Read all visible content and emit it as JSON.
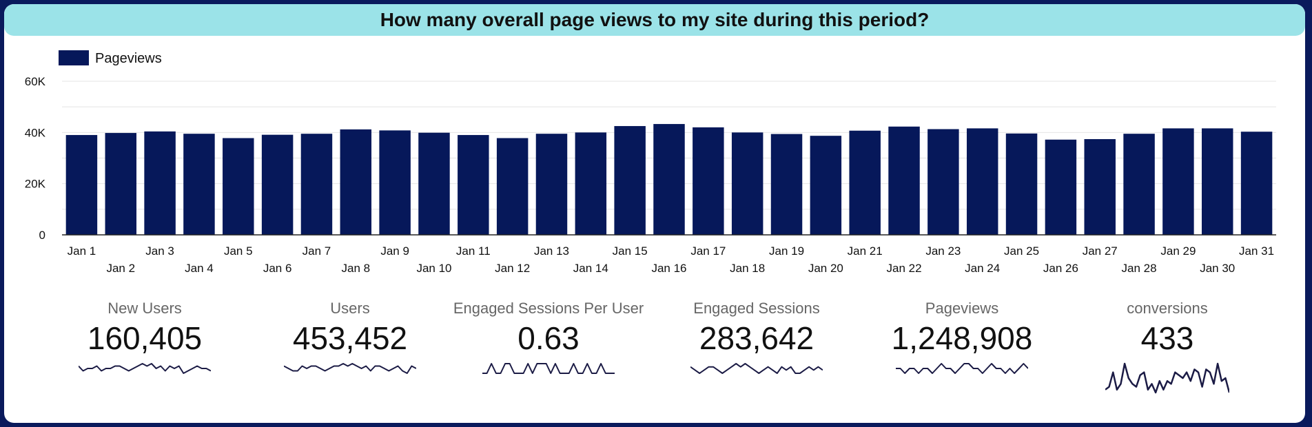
{
  "title": "How many overall page views to my site during this period?",
  "colors": {
    "bar": "#06185a",
    "title_bg": "#9be3e8",
    "frame": "#0a1a5c",
    "sparkline": "#1b1b45"
  },
  "chart_data": {
    "type": "bar",
    "title": "How many overall page views to my site during this period?",
    "legend": {
      "position": "top-left",
      "entries": [
        "Pageviews"
      ]
    },
    "categories": [
      "Jan 1",
      "Jan 2",
      "Jan 3",
      "Jan 4",
      "Jan 5",
      "Jan 6",
      "Jan 7",
      "Jan 8",
      "Jan 9",
      "Jan 10",
      "Jan 11",
      "Jan 12",
      "Jan 13",
      "Jan 14",
      "Jan 15",
      "Jan 16",
      "Jan 17",
      "Jan 18",
      "Jan 19",
      "Jan 20",
      "Jan 21",
      "Jan 22",
      "Jan 23",
      "Jan 24",
      "Jan 25",
      "Jan 26",
      "Jan 27",
      "Jan 28",
      "Jan 29",
      "Jan 30",
      "Jan 31"
    ],
    "series": [
      {
        "name": "Pageviews",
        "values": [
          39000,
          39800,
          40400,
          39500,
          37800,
          39100,
          39500,
          41200,
          40800,
          39900,
          39000,
          37800,
          39500,
          40000,
          42500,
          43300,
          42000,
          40000,
          39400,
          38700,
          40700,
          42300,
          41300,
          41600,
          39600,
          37200,
          37400,
          39500,
          41600,
          41600,
          40300
        ]
      }
    ],
    "xlabel": "",
    "ylabel": "",
    "ylim": [
      0,
      60000
    ],
    "yticks": [
      0,
      20000,
      40000,
      60000
    ],
    "ytick_labels": [
      "0",
      "20K",
      "40K",
      "60K"
    ],
    "grid": true
  },
  "kpis": [
    {
      "label": "New Users",
      "value": "160,405",
      "trend": [
        5,
        3,
        4,
        4,
        5,
        3,
        4,
        4,
        5,
        5,
        4,
        3,
        4,
        5,
        6,
        5,
        6,
        4,
        5,
        3,
        5,
        4,
        5,
        2,
        3,
        4,
        5,
        4,
        4,
        3
      ]
    },
    {
      "label": "Users",
      "value": "453,452",
      "trend": [
        5,
        4,
        3,
        3,
        5,
        4,
        5,
        5,
        4,
        3,
        4,
        5,
        5,
        6,
        5,
        6,
        5,
        4,
        5,
        3,
        5,
        5,
        4,
        3,
        4,
        5,
        3,
        2,
        5,
        4
      ]
    },
    {
      "label": "Engaged Sessions Per User",
      "value": "0.63",
      "trend": [
        5,
        5,
        6,
        5,
        5,
        6,
        6,
        5,
        5,
        5,
        6,
        5,
        6,
        6,
        6,
        5,
        6,
        5,
        5,
        5,
        6,
        5,
        5,
        6,
        5,
        5,
        6,
        5,
        5,
        5
      ]
    },
    {
      "label": "Engaged Sessions",
      "value": "283,642",
      "trend": [
        5,
        4,
        3,
        4,
        5,
        5,
        4,
        3,
        4,
        5,
        6,
        5,
        6,
        5,
        4,
        3,
        4,
        5,
        4,
        3,
        5,
        4,
        5,
        3,
        3,
        4,
        5,
        4,
        5,
        4
      ]
    },
    {
      "label": "Pageviews",
      "value": "1,248,908",
      "trend": [
        5,
        5,
        4,
        5,
        5,
        4,
        5,
        5,
        4,
        5,
        6,
        5,
        5,
        4,
        5,
        6,
        6,
        5,
        5,
        4,
        5,
        6,
        5,
        5,
        4,
        5,
        4,
        5,
        6,
        5
      ]
    },
    {
      "label": "conversions",
      "value": "433",
      "trend": [
        3,
        4,
        9,
        3,
        5,
        12,
        7,
        5,
        4,
        8,
        9,
        3,
        5,
        2,
        6,
        3,
        6,
        5,
        9,
        8,
        7,
        9,
        6,
        10,
        9,
        4,
        10,
        9,
        5,
        12,
        6,
        7,
        2
      ]
    }
  ]
}
